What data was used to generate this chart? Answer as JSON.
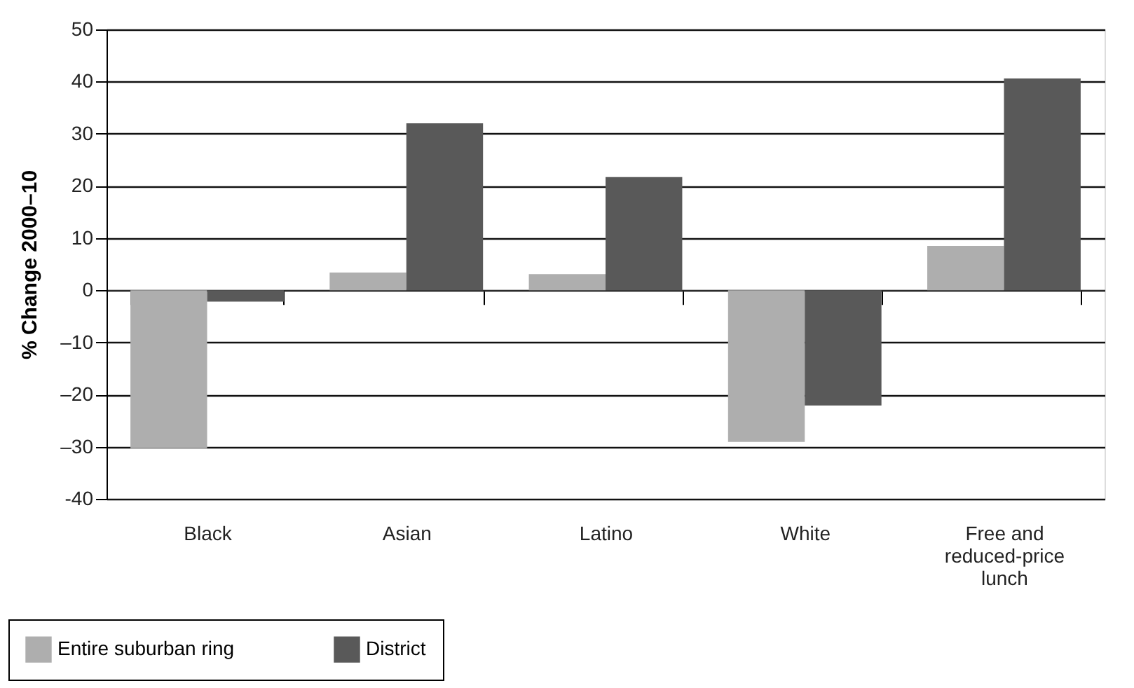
{
  "chart_data": {
    "type": "bar",
    "ylabel": "% Change 2000–10",
    "categories": [
      "Black",
      "Asian",
      "Latino",
      "White",
      "Free and reduced-price lunch"
    ],
    "series": [
      {
        "name": "Entire suburban ring",
        "color": "#aeaeae",
        "values": [
          -30.3,
          3.4,
          3.1,
          -29.1,
          8.5
        ]
      },
      {
        "name": "District",
        "color": "#595959",
        "values": [
          -2.2,
          32.0,
          21.7,
          -22.1,
          40.6
        ]
      }
    ],
    "ylim": [
      -40,
      50
    ],
    "yticks": [
      {
        "value": -40,
        "label": "-40"
      },
      {
        "value": -30,
        "label": "–30"
      },
      {
        "value": -20,
        "label": "–20"
      },
      {
        "value": -10,
        "label": "–10"
      },
      0,
      10,
      20,
      30,
      40,
      50
    ],
    "grid": "y",
    "legend": "bottom left"
  }
}
